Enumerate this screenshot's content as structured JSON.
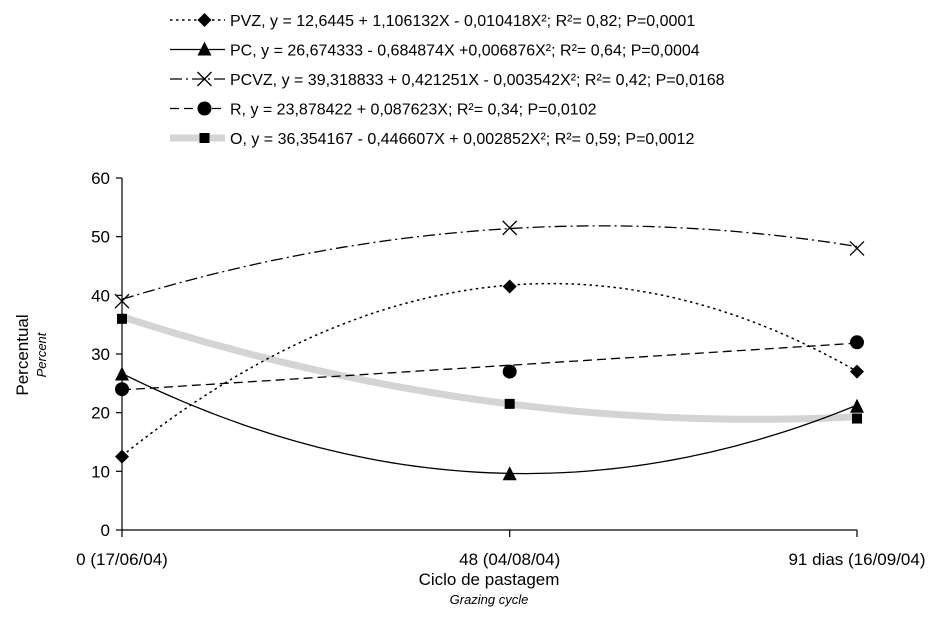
{
  "chart_data": {
    "type": "line",
    "x": [
      0,
      48,
      91
    ],
    "categories": [
      "0 (17/06/04)",
      "48 (04/08/04)",
      "91 dias (16/09/04)"
    ],
    "xlabel": "Ciclo de pastagem",
    "xlabel_sub": "Grazing cycle",
    "ylabel": "Percentual",
    "ylabel_sub": "Percent",
    "ylim": [
      0,
      60
    ],
    "yticks": [
      0,
      10,
      20,
      30,
      40,
      50,
      60
    ],
    "grid": false,
    "legend_position": "top",
    "series": [
      {
        "key": "pvz",
        "name": "PVZ, y = 12,6445 + 1,106132X - 0,010418X²;  R²= 0,82; P=0,0001",
        "marker": "diamond",
        "line": "dotted",
        "coef": [
          12.6445,
          1.106132,
          -0.010418
        ],
        "points": [
          12.5,
          41.5,
          27
        ]
      },
      {
        "key": "pc",
        "name": "PC, y = 26,674333 - 0,684874X +0,006876X²;  R²= 0,64; P=0,0004",
        "marker": "triangle",
        "line": "solid",
        "coef": [
          26.674333,
          -0.684874,
          0.006876
        ],
        "points": [
          26.5,
          9.5,
          21
        ]
      },
      {
        "key": "pcvz",
        "name": "PCVZ, y = 39,318833 + 0,421251X - 0,003542X²;  R²= 0,42; P=0,0168",
        "marker": "x",
        "line": "dashdot",
        "coef": [
          39.318833,
          0.421251,
          -0.003542
        ],
        "points": [
          39,
          51.5,
          48
        ]
      },
      {
        "key": "r",
        "name": "R, y = 23,878422 + 0,087623X;  R²= 0,34; P=0,0102",
        "marker": "circle",
        "line": "dashed",
        "coef": [
          23.878422,
          0.087623,
          0
        ],
        "points": [
          24,
          27,
          32
        ]
      },
      {
        "key": "o",
        "name": "O, y = 36,354167 - 0,446607X + 0,002852X²;  R²= 0,59; P=0,0012",
        "marker": "square",
        "line": "thick-gray",
        "coef": [
          36.354167,
          -0.446607,
          0.002852
        ],
        "points": [
          36,
          21.5,
          19
        ]
      }
    ]
  }
}
